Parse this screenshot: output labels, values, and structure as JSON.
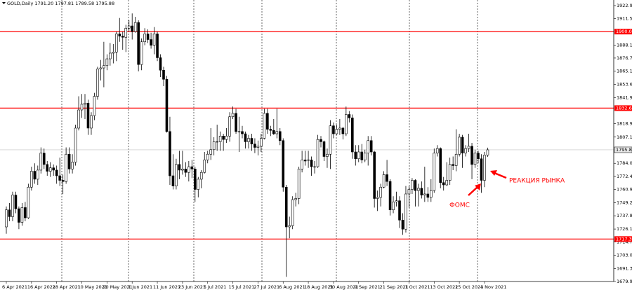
{
  "chart_data": {
    "type": "candlestick",
    "title": "GOLD,Daily  1791.20 1797.81 1789.58 1795.88",
    "categories": [
      "6 Apr 2021",
      null,
      null,
      null,
      null,
      null,
      null,
      null,
      "16 Apr 2021",
      null,
      null,
      null,
      null,
      null,
      null,
      null,
      "28 Apr 2021",
      null,
      null,
      null,
      null,
      null,
      null,
      null,
      "10 May 2021",
      null,
      null,
      null,
      null,
      null,
      null,
      null,
      "20 May 2021",
      null,
      null,
      null,
      null,
      null,
      null,
      null,
      "1 Jun 2021",
      null,
      null,
      null,
      null,
      null,
      null,
      null,
      "11 Jun 2021",
      null,
      null,
      null,
      null,
      null,
      null,
      null,
      "23 Jun 2021",
      null,
      null,
      null,
      null,
      null,
      null,
      null,
      "5 Jul 2021",
      null,
      null,
      null,
      null,
      null,
      null,
      null,
      "15 Jul 2021",
      null,
      null,
      null,
      null,
      null,
      null,
      null,
      "27 Jul 2021",
      null,
      null,
      null,
      null,
      null,
      null,
      null,
      "6 Aug 2021",
      null,
      null,
      null,
      null,
      null,
      null,
      null,
      "18 Aug 2021",
      null,
      null,
      null,
      null,
      null,
      null,
      null,
      "30 Aug 2021",
      null,
      null,
      null,
      null,
      null,
      null,
      null,
      "9 Sep 2021",
      null,
      null,
      null,
      null,
      null,
      null,
      null,
      "21 Sep 2021",
      null,
      null,
      null,
      null,
      null,
      null,
      null,
      "1 Oct 2021",
      null,
      null,
      null,
      null,
      null,
      null,
      null,
      "13 Oct 2021",
      null,
      null,
      null,
      null,
      null,
      null,
      null,
      "25 Oct 2021",
      null,
      null,
      null,
      null,
      null,
      null,
      null,
      "4 Nov 2021",
      null
    ],
    "candles": [
      [
        1728,
        1746,
        1722,
        1743
      ],
      [
        1743,
        1749,
        1733,
        1737
      ],
      [
        1737,
        1759,
        1733,
        1756
      ],
      [
        1756,
        1759,
        1740,
        1744
      ],
      [
        1744,
        1746,
        1726,
        1732
      ],
      [
        1732,
        1749,
        1729,
        1745
      ],
      [
        1745,
        1750,
        1733,
        1736
      ],
      [
        1736,
        1766,
        1735,
        1763
      ],
      [
        1763,
        1781,
        1760,
        1777
      ],
      [
        1777,
        1784,
        1766,
        1770
      ],
      [
        1770,
        1782,
        1765,
        1778
      ],
      [
        1778,
        1798,
        1775,
        1793
      ],
      [
        1793,
        1797,
        1779,
        1783
      ],
      [
        1783,
        1786,
        1773,
        1777
      ],
      [
        1777,
        1785,
        1772,
        1780
      ],
      [
        1780,
        1783,
        1773,
        1778
      ],
      [
        1778,
        1782,
        1766,
        1773
      ],
      [
        1773,
        1789,
        1764,
        1769
      ],
      [
        1769,
        1774,
        1757,
        1768
      ],
      [
        1768,
        1798,
        1766,
        1792
      ],
      [
        1792,
        1798,
        1775,
        1779
      ],
      [
        1779,
        1792,
        1775,
        1785
      ],
      [
        1785,
        1818,
        1782,
        1815
      ],
      [
        1815,
        1843,
        1813,
        1831
      ],
      [
        1831,
        1845,
        1824,
        1836
      ],
      [
        1836,
        1845,
        1823,
        1837
      ],
      [
        1837,
        1840,
        1809,
        1815
      ],
      [
        1815,
        1829,
        1809,
        1826
      ],
      [
        1826,
        1846,
        1822,
        1843
      ],
      [
        1843,
        1869,
        1840,
        1867
      ],
      [
        1867,
        1875,
        1857,
        1868
      ],
      [
        1868,
        1891,
        1851,
        1870
      ],
      [
        1870,
        1880,
        1866,
        1876
      ],
      [
        1876,
        1890,
        1870,
        1881
      ],
      [
        1881,
        1889,
        1872,
        1882
      ],
      [
        1882,
        1900,
        1874,
        1898
      ],
      [
        1898,
        1912,
        1891,
        1896
      ],
      [
        1896,
        1900,
        1884,
        1895
      ],
      [
        1895,
        1906,
        1882,
        1903
      ],
      [
        1903,
        1910,
        1900,
        1905
      ],
      [
        1905,
        1916,
        1893,
        1900
      ],
      [
        1900,
        1913,
        1899,
        1908
      ],
      [
        1908,
        1910,
        1865,
        1871
      ],
      [
        1871,
        1894,
        1866,
        1891
      ],
      [
        1891,
        1903,
        1888,
        1898
      ],
      [
        1898,
        1902,
        1890,
        1893
      ],
      [
        1893,
        1899,
        1885,
        1888
      ],
      [
        1888,
        1904,
        1880,
        1898
      ],
      [
        1898,
        1900,
        1874,
        1877
      ],
      [
        1877,
        1880,
        1860,
        1866
      ],
      [
        1866,
        1869,
        1852,
        1858
      ],
      [
        1858,
        1861,
        1811,
        1812
      ],
      [
        1812,
        1825,
        1765,
        1773
      ],
      [
        1773,
        1792,
        1761,
        1764
      ],
      [
        1764,
        1788,
        1761,
        1783
      ],
      [
        1783,
        1795,
        1770,
        1778
      ],
      [
        1778,
        1795,
        1774,
        1779
      ],
      [
        1779,
        1785,
        1772,
        1776
      ],
      [
        1776,
        1786,
        1768,
        1781
      ],
      [
        1781,
        1787,
        1771,
        1779
      ],
      [
        1779,
        1781,
        1750,
        1761
      ],
      [
        1761,
        1772,
        1754,
        1770
      ],
      [
        1770,
        1778,
        1762,
        1776
      ],
      [
        1776,
        1794,
        1775,
        1787
      ],
      [
        1787,
        1795,
        1784,
        1792
      ],
      [
        1792,
        1815,
        1787,
        1796
      ],
      [
        1796,
        1807,
        1791,
        1803
      ],
      [
        1803,
        1818,
        1795,
        1803
      ],
      [
        1803,
        1812,
        1795,
        1808
      ],
      [
        1808,
        1810,
        1795,
        1805
      ],
      [
        1805,
        1815,
        1802,
        1808
      ],
      [
        1808,
        1829,
        1803,
        1825
      ],
      [
        1825,
        1834,
        1823,
        1828
      ],
      [
        1828,
        1832,
        1810,
        1812
      ],
      [
        1812,
        1825,
        1794,
        1812
      ],
      [
        1812,
        1817,
        1806,
        1810
      ],
      [
        1810,
        1812,
        1797,
        1803
      ],
      [
        1803,
        1809,
        1797,
        1806
      ],
      [
        1806,
        1810,
        1795,
        1801
      ],
      [
        1801,
        1806,
        1793,
        1798
      ],
      [
        1798,
        1804,
        1791,
        1799
      ],
      [
        1799,
        1810,
        1794,
        1806
      ],
      [
        1806,
        1832,
        1805,
        1828
      ],
      [
        1828,
        1832,
        1810,
        1814
      ],
      [
        1814,
        1817,
        1808,
        1813
      ],
      [
        1813,
        1823,
        1809,
        1810
      ],
      [
        1810,
        1832,
        1806,
        1812
      ],
      [
        1812,
        1815,
        1800,
        1804
      ],
      [
        1804,
        1806,
        1759,
        1763
      ],
      [
        1763,
        1765,
        1684,
        1728
      ],
      [
        1728,
        1737,
        1718,
        1729
      ],
      [
        1729,
        1755,
        1726,
        1752
      ],
      [
        1752,
        1758,
        1746,
        1753
      ],
      [
        1753,
        1781,
        1748,
        1779
      ],
      [
        1779,
        1795,
        1776,
        1787
      ],
      [
        1787,
        1795,
        1782,
        1786
      ],
      [
        1787,
        1795,
        1780,
        1787
      ],
      [
        1787,
        1790,
        1773,
        1781
      ],
      [
        1781,
        1786,
        1775,
        1781
      ],
      [
        1781,
        1809,
        1780,
        1805
      ],
      [
        1805,
        1808,
        1798,
        1803
      ],
      [
        1803,
        1804,
        1786,
        1790
      ],
      [
        1790,
        1797,
        1780,
        1792
      ],
      [
        1792,
        1822,
        1779,
        1817
      ],
      [
        1817,
        1820,
        1806,
        1810
      ],
      [
        1810,
        1818,
        1809,
        1814
      ],
      [
        1814,
        1823,
        1809,
        1815
      ],
      [
        1815,
        1816,
        1805,
        1810
      ],
      [
        1810,
        1834,
        1808,
        1827
      ],
      [
        1827,
        1830,
        1820,
        1824
      ],
      [
        1824,
        1827,
        1788,
        1794
      ],
      [
        1794,
        1800,
        1782,
        1788
      ],
      [
        1788,
        1800,
        1785,
        1794
      ],
      [
        1794,
        1801,
        1784,
        1787
      ],
      [
        1787,
        1796,
        1785,
        1793
      ],
      [
        1793,
        1808,
        1782,
        1804
      ],
      [
        1804,
        1808,
        1791,
        1794
      ],
      [
        1794,
        1795,
        1745,
        1753
      ],
      [
        1753,
        1760,
        1742,
        1754
      ],
      [
        1754,
        1766,
        1746,
        1763
      ],
      [
        1763,
        1777,
        1762,
        1774
      ],
      [
        1774,
        1787,
        1764,
        1768
      ],
      [
        1768,
        1770,
        1738,
        1743
      ],
      [
        1743,
        1755,
        1740,
        1750
      ],
      [
        1750,
        1759,
        1746,
        1751
      ],
      [
        1751,
        1755,
        1727,
        1734
      ],
      [
        1734,
        1740,
        1721,
        1726
      ],
      [
        1726,
        1764,
        1723,
        1757
      ],
      [
        1757,
        1764,
        1745,
        1761
      ],
      [
        1761,
        1771,
        1757,
        1769
      ],
      [
        1769,
        1770,
        1746,
        1760
      ],
      [
        1760,
        1766,
        1746,
        1762
      ],
      [
        1762,
        1768,
        1753,
        1756
      ],
      [
        1756,
        1781,
        1750,
        1757
      ],
      [
        1757,
        1763,
        1750,
        1754
      ],
      [
        1754,
        1770,
        1750,
        1760
      ],
      [
        1760,
        1797,
        1758,
        1793
      ],
      [
        1793,
        1800,
        1790,
        1797
      ],
      [
        1797,
        1798,
        1762,
        1767
      ],
      [
        1767,
        1772,
        1760,
        1765
      ],
      [
        1765,
        1785,
        1764,
        1769
      ],
      [
        1769,
        1789,
        1765,
        1783
      ],
      [
        1783,
        1790,
        1778,
        1782
      ],
      [
        1782,
        1814,
        1777,
        1792
      ],
      [
        1792,
        1810,
        1790,
        1807
      ],
      [
        1807,
        1809,
        1780,
        1793
      ],
      [
        1793,
        1800,
        1790,
        1797
      ],
      [
        1797,
        1810,
        1794,
        1799
      ],
      [
        1799,
        1802,
        1770,
        1783
      ],
      [
        1783,
        1796,
        1780,
        1793
      ],
      [
        1793,
        1795,
        1784,
        1788
      ],
      [
        1788,
        1792,
        1758,
        1769
      ],
      [
        1769,
        1794,
        1763,
        1791.2
      ],
      [
        1791.2,
        1797.81,
        1789.58,
        1795.88
      ]
    ],
    "up_color": "#ffffff",
    "down_color": "#000000",
    "outline_color": "#000000",
    "ylim": [
      1679.9,
      1922.9
    ],
    "yticks": [
      {
        "value": 1922.9,
        "label": "1922.90"
      },
      {
        "value": 1911.5,
        "label": "1911.50"
      },
      {
        "value": 1888.1,
        "label": "1888.10"
      },
      {
        "value": 1876.7,
        "label": "1876.70"
      },
      {
        "value": 1865.1,
        "label": "1865.10"
      },
      {
        "value": 1853.6,
        "label": "1853.60"
      },
      {
        "value": 1841.9,
        "label": "1841.90"
      },
      {
        "value": 1818.9,
        "label": "1818.90"
      },
      {
        "value": 1807.1,
        "label": "1807.10"
      },
      {
        "value": 1784,
        "label": "1784.00"
      },
      {
        "value": 1772.4,
        "label": "1772.40"
      },
      {
        "value": 1760.9,
        "label": "1760.90"
      },
      {
        "value": 1749.2,
        "label": "1749.20"
      },
      {
        "value": 1737.8,
        "label": "1737.80"
      },
      {
        "value": 1726.1,
        "label": "1726.10"
      },
      {
        "value": 1714.7,
        "label": "1714.70"
      },
      {
        "value": 1703,
        "label": "1703.00"
      },
      {
        "value": 1691.3,
        "label": "1691.30"
      },
      {
        "value": 1679.9,
        "label": "1679.90"
      }
    ],
    "levels": [
      {
        "value": 1900,
        "label": "1900.00"
      },
      {
        "value": 1832.6,
        "label": "1832.60"
      },
      {
        "value": 1717.3,
        "label": "1717.30"
      }
    ],
    "level_color": "#ff0000",
    "current_price": {
      "value": 1795.88,
      "label": "1795.88"
    },
    "annotations": [
      "РЕАКЦИЯ РЫНКА",
      "ФОМС"
    ]
  }
}
